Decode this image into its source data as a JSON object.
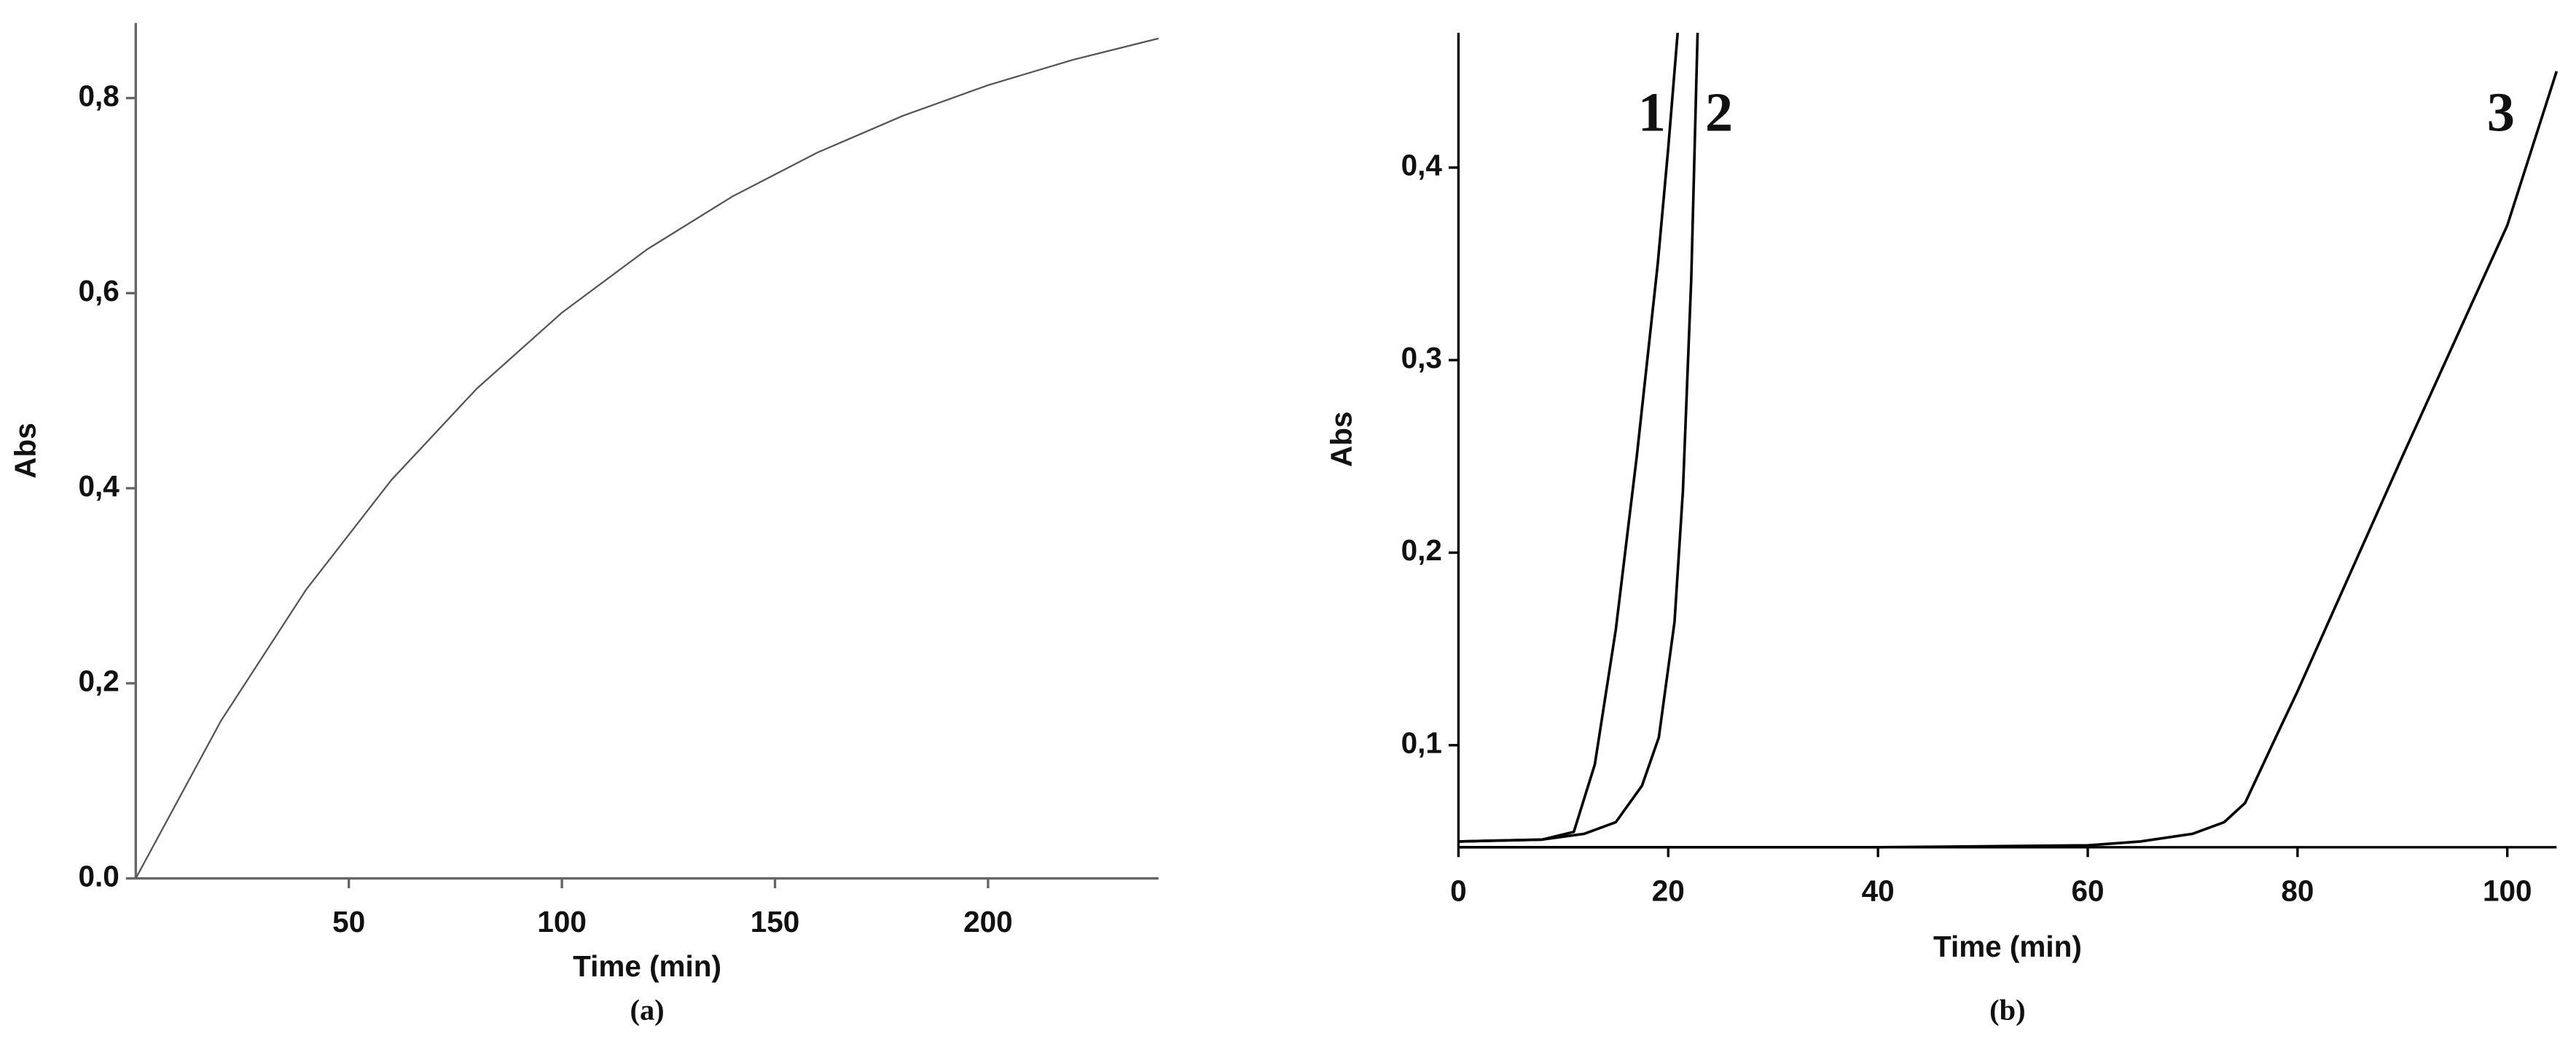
{
  "chart_data": [
    {
      "type": "line",
      "caption": "(a)",
      "xlabel": "Time (min)",
      "ylabel": "Abs",
      "xlim": [
        0,
        240
      ],
      "ylim": [
        0,
        0.877
      ],
      "xticks": [
        50,
        100,
        150,
        200
      ],
      "yticks": [
        {
          "value": 0,
          "label": "0.0"
        },
        {
          "value": 0.2,
          "label": "0,2"
        },
        {
          "value": 0.4,
          "label": "0,4"
        },
        {
          "value": 0.6,
          "label": "0,6"
        },
        {
          "value": 0.8,
          "label": "0,8"
        }
      ],
      "grid": false,
      "x": [
        0,
        20,
        40,
        60,
        80,
        100,
        120,
        140,
        160,
        180,
        200,
        220,
        240
      ],
      "series": [
        {
          "color": "#555555",
          "values": [
            0,
            0.1616,
            0.2962,
            0.4085,
            0.502,
            0.58,
            0.6449,
            0.6991,
            0.7442,
            0.7818,
            0.8132,
            0.8393,
            0.8611
          ]
        }
      ]
    },
    {
      "type": "line",
      "caption": "(b)",
      "xlabel": "Time (min)",
      "ylabel": "Abs",
      "xlim": [
        0,
        104.7
      ],
      "ylim": [
        0.047,
        0.47
      ],
      "xticks": [
        0,
        20,
        40,
        60,
        80,
        100
      ],
      "yticks": [
        {
          "value": 0.1,
          "label": "0,1"
        },
        {
          "value": 0.2,
          "label": "0,2"
        },
        {
          "value": 0.3,
          "label": "0,3"
        },
        {
          "value": 0.4,
          "label": "0,4"
        }
      ],
      "grid": false,
      "series": [
        {
          "name": "1",
          "color": "#000000",
          "x": [
            0,
            8,
            11,
            13,
            15,
            17,
            19,
            20,
            20.9
          ],
          "values": [
            0.05,
            0.051,
            0.055,
            0.09,
            0.16,
            0.25,
            0.35,
            0.41,
            0.47
          ]
        },
        {
          "name": "2",
          "color": "#000000",
          "x": [
            0,
            8,
            12,
            15,
            17.5,
            19.1,
            20.6,
            21.4,
            22.2,
            22.8
          ],
          "values": [
            0.05,
            0.051,
            0.054,
            0.06,
            0.079,
            0.104,
            0.164,
            0.232,
            0.343,
            0.47
          ]
        },
        {
          "name": "3",
          "color": "#000000",
          "x": [
            0,
            20,
            40,
            60,
            65,
            70,
            73,
            75,
            78,
            80,
            90,
            100,
            104.7
          ],
          "values": [
            0.047,
            0.047,
            0.047,
            0.048,
            0.05,
            0.054,
            0.06,
            0.07,
            0.105,
            0.128,
            0.25,
            0.37,
            0.45
          ]
        }
      ]
    }
  ]
}
